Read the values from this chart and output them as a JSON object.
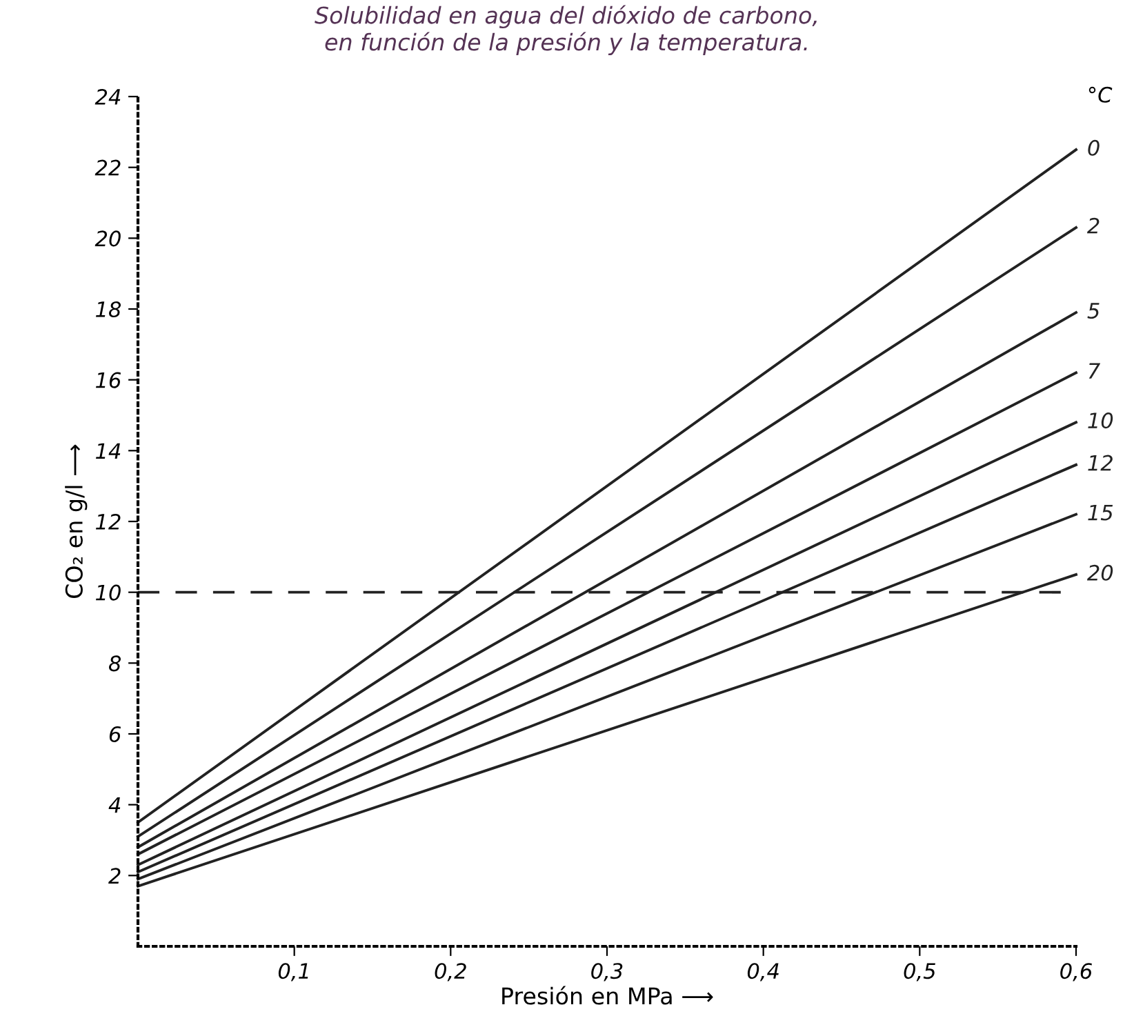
{
  "chart_data": {
    "type": "line",
    "title": "Solubilidad en agua del dióxido de carbono,\nen función de la presión y la temperatura.",
    "xlabel": "Presión en MPa ⟶",
    "ylabel": "CO₂ en g/l ⟶",
    "legend_title": "°C",
    "x": [
      0,
      0.6
    ],
    "series": [
      {
        "name": "0",
        "color": "#222222",
        "values": [
          3.5,
          22.5
        ]
      },
      {
        "name": "2",
        "color": "#222222",
        "values": [
          3.1,
          20.3
        ]
      },
      {
        "name": "5",
        "color": "#222222",
        "values": [
          2.8,
          17.9
        ]
      },
      {
        "name": "7",
        "color": "#222222",
        "values": [
          2.6,
          16.2
        ]
      },
      {
        "name": "10",
        "color": "#222222",
        "values": [
          2.3,
          14.8
        ]
      },
      {
        "name": "12",
        "color": "#222222",
        "values": [
          2.1,
          13.6
        ]
      },
      {
        "name": "15",
        "color": "#222222",
        "values": [
          1.9,
          12.2
        ]
      },
      {
        "name": "20",
        "color": "#222222",
        "values": [
          1.7,
          10.5
        ]
      }
    ],
    "ref_lines": [
      {
        "axis": "y",
        "value": 10,
        "color": "#222222",
        "line_style": "dashed"
      }
    ],
    "xlim": [
      0,
      0.6
    ],
    "ylim": [
      0,
      24
    ],
    "xticks": [
      {
        "value": 0.1,
        "label": "0,1"
      },
      {
        "value": 0.2,
        "label": "0,2"
      },
      {
        "value": 0.3,
        "label": "0,3"
      },
      {
        "value": 0.4,
        "label": "0,4"
      },
      {
        "value": 0.5,
        "label": "0,5"
      },
      {
        "value": 0.6,
        "label": "0,6"
      }
    ],
    "yticks": [
      2,
      4,
      6,
      8,
      10,
      12,
      14,
      16,
      18,
      20,
      22,
      24
    ],
    "grid": false,
    "legend": false,
    "marker": "none",
    "line_style": "solid"
  }
}
